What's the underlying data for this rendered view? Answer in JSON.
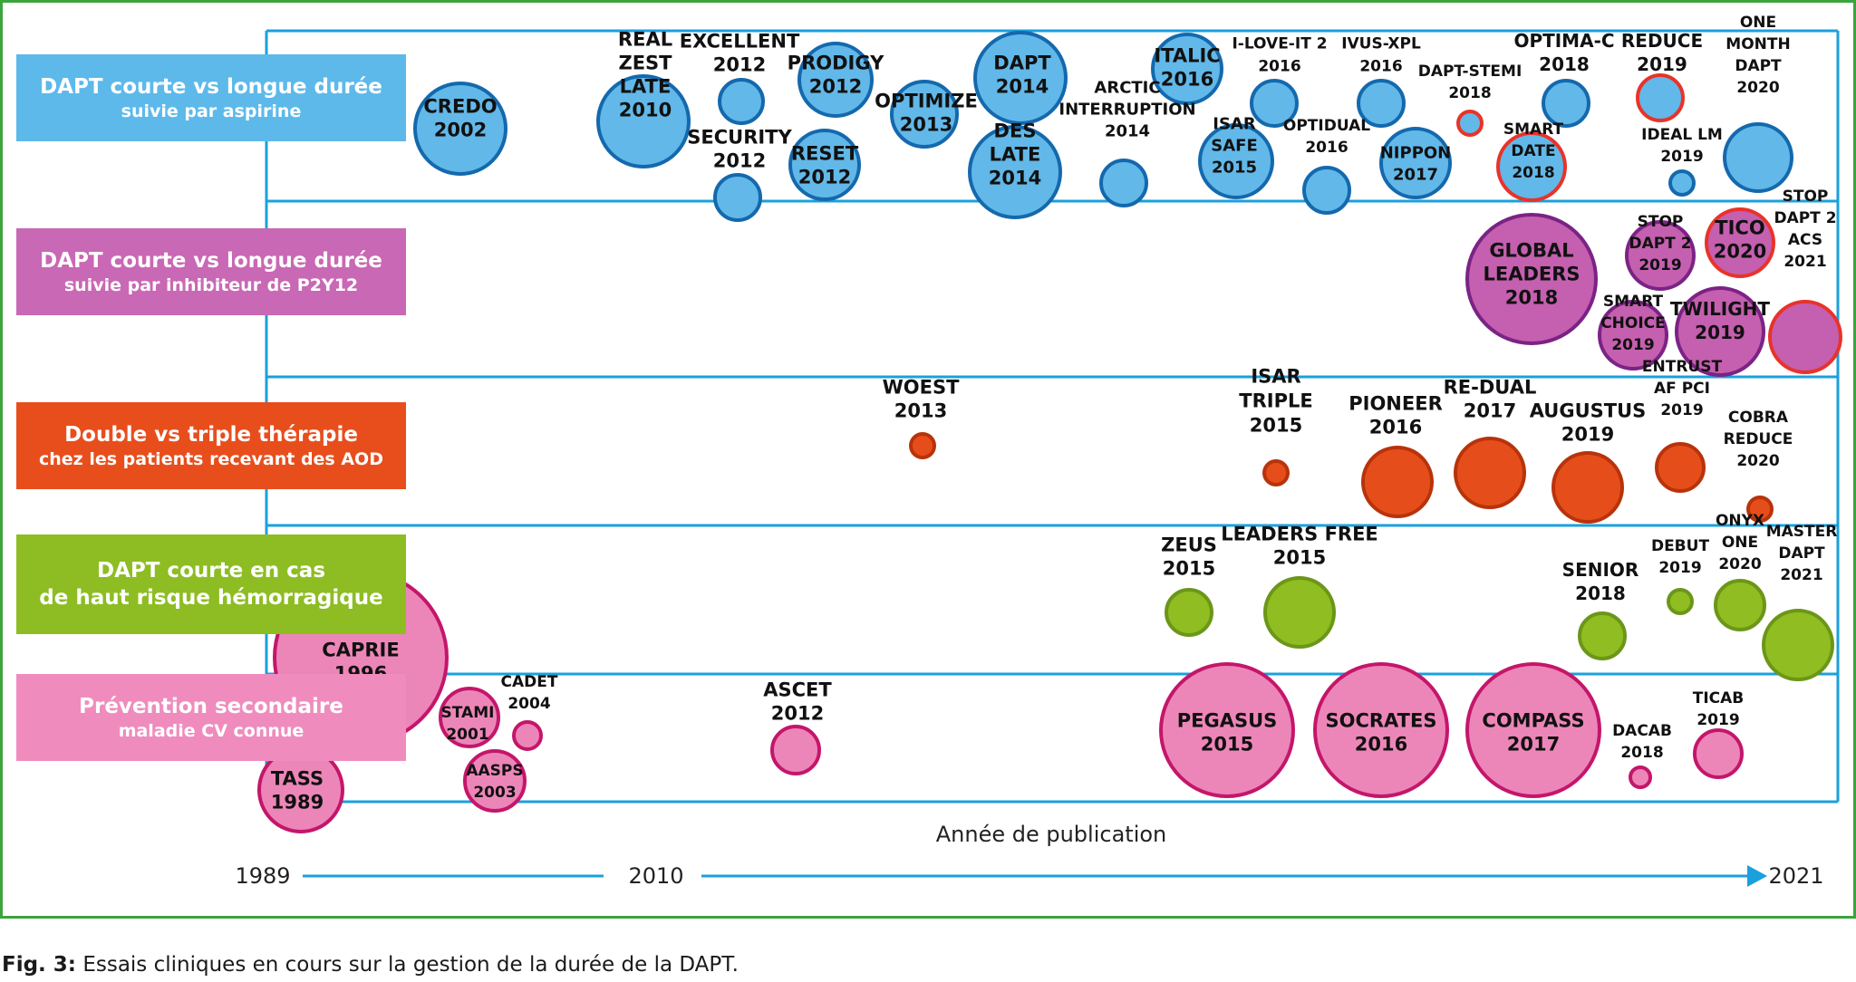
{
  "figure": {
    "caption_prefix": "Fig. 3:",
    "caption_text": " Essais cliniques en cours sur la gestion de la durée de la DAPT.",
    "x_axis_title": "Année de publication",
    "axis_start": "1989",
    "axis_mid": "2010",
    "axis_end": "2021"
  },
  "colors": {
    "frame": "#3aa33c",
    "axis": "#1aa0dd",
    "blue_fill": "#62b8e8",
    "blue_stroke": "#1469ad",
    "purple_fill": "#c55faf",
    "purple_stroke": "#7b2385",
    "orange_fill": "#e54e1b",
    "orange_stroke": "#b8330b",
    "green_fill": "#8fbd22",
    "green_stroke": "#6c9618",
    "pink_fill": "#ed86b8",
    "pink_stroke": "#c4166b",
    "red_stroke": "#e8332a"
  },
  "categories": [
    {
      "id": "blue",
      "line1": "DAPT courte vs longue durée",
      "line2": "suivie par aspirine",
      "color": "#5db9ea"
    },
    {
      "id": "purple",
      "line1": "DAPT courte vs longue durée",
      "line2": "suivie par inhibiteur de P2Y12",
      "color": "#c968b4"
    },
    {
      "id": "orange",
      "line1": "Double vs triple thérapie",
      "line2": "chez les patients recevant des AOD",
      "color": "#e84e1c"
    },
    {
      "id": "green",
      "line1": "DAPT courte en cas",
      "line2": "de haut risque hémorragique",
      "color": "#8dbd22"
    },
    {
      "id": "pink",
      "line1": "Prévention secondaire",
      "line2": "maladie CV connue",
      "color": "#ef8cbd"
    }
  ],
  "trials": [
    {
      "label": [
        "CREDO",
        "2002"
      ],
      "category": "blue"
    },
    {
      "label": [
        "REAL",
        "ZEST",
        "LATE",
        "2010"
      ],
      "category": "blue"
    },
    {
      "label": [
        "EXCELLENT",
        "2012"
      ],
      "category": "blue"
    },
    {
      "label": [
        "PRODIGY",
        "2012"
      ],
      "category": "blue"
    },
    {
      "label": [
        "SECURITY",
        "2012"
      ],
      "category": "blue"
    },
    {
      "label": [
        "RESET",
        "2012"
      ],
      "category": "blue"
    },
    {
      "label": [
        "OPTIMIZE",
        "2013"
      ],
      "category": "blue"
    },
    {
      "label": [
        "DAPT",
        "2014"
      ],
      "category": "blue"
    },
    {
      "label": [
        "DES",
        "LATE",
        "2014"
      ],
      "category": "blue"
    },
    {
      "label": [
        "ARCTIC",
        "INTERRUPTION",
        "2014"
      ],
      "category": "blue"
    },
    {
      "label": [
        "ITALIC",
        "2016"
      ],
      "category": "blue"
    },
    {
      "label": [
        "ISAR",
        "SAFE",
        "2015"
      ],
      "category": "blue"
    },
    {
      "label": [
        "I-LOVE-IT 2",
        "2016"
      ],
      "category": "blue"
    },
    {
      "label": [
        "OPTIDUAL",
        "2016"
      ],
      "category": "blue"
    },
    {
      "label": [
        "IVUS-XPL",
        "2016"
      ],
      "category": "blue"
    },
    {
      "label": [
        "NIPPON",
        "2017"
      ],
      "category": "blue"
    },
    {
      "label": [
        "DAPT-STEMI",
        "2018"
      ],
      "category": "blue"
    },
    {
      "label": [
        "SMART",
        "DATE",
        "2018"
      ],
      "category": "blue"
    },
    {
      "label": [
        "OPTIMA-C",
        "2018"
      ],
      "category": "blue"
    },
    {
      "label": [
        "REDUCE",
        "2019"
      ],
      "category": "blue"
    },
    {
      "label": [
        "IDEAL LM",
        "2019"
      ],
      "category": "blue"
    },
    {
      "label": [
        "ONE",
        "MONTH",
        "DAPT",
        "2020"
      ],
      "category": "blue"
    },
    {
      "label": [
        "GLOBAL",
        "LEADERS",
        "2018"
      ],
      "category": "purple"
    },
    {
      "label": [
        "STOP",
        "DAPT 2",
        "2019"
      ],
      "category": "purple"
    },
    {
      "label": [
        "TICO",
        "2020"
      ],
      "category": "purple"
    },
    {
      "label": [
        "STOP",
        "DAPT 2",
        "ACS",
        "2021"
      ],
      "category": "purple"
    },
    {
      "label": [
        "SMART",
        "CHOICE",
        "2019"
      ],
      "category": "purple"
    },
    {
      "label": [
        "TWILIGHT",
        "2019"
      ],
      "category": "purple"
    },
    {
      "label": [
        "WOEST",
        "2013"
      ],
      "category": "orange"
    },
    {
      "label": [
        "ISAR",
        "TRIPLE",
        "2015"
      ],
      "category": "orange"
    },
    {
      "label": [
        "PIONEER",
        "2016"
      ],
      "category": "orange"
    },
    {
      "label": [
        "RE-DUAL",
        "2017"
      ],
      "category": "orange"
    },
    {
      "label": [
        "AUGUSTUS",
        "2019"
      ],
      "category": "orange"
    },
    {
      "label": [
        "ENTRUST",
        "AF PCI",
        "2019"
      ],
      "category": "orange"
    },
    {
      "label": [
        "COBRA",
        "REDUCE",
        "2020"
      ],
      "category": "orange"
    },
    {
      "label": [
        "ZEUS",
        "2015"
      ],
      "category": "green"
    },
    {
      "label": [
        "LEADERS FREE",
        "2015"
      ],
      "category": "green"
    },
    {
      "label": [
        "SENIOR",
        "2018"
      ],
      "category": "green"
    },
    {
      "label": [
        "DEBUT",
        "2019"
      ],
      "category": "green"
    },
    {
      "label": [
        "ONYX",
        "ONE",
        "2020"
      ],
      "category": "green"
    },
    {
      "label": [
        "MASTER",
        "DAPT",
        "2021"
      ],
      "category": "green"
    },
    {
      "label": [
        "CAPRIE",
        "1996"
      ],
      "category": "pink"
    },
    {
      "label": [
        "STAMI",
        "2001"
      ],
      "category": "pink"
    },
    {
      "label": [
        "CADET",
        "2004"
      ],
      "category": "pink"
    },
    {
      "label": [
        "AASPS",
        "2003"
      ],
      "category": "pink"
    },
    {
      "label": [
        "TASS",
        "1989"
      ],
      "category": "pink"
    },
    {
      "label": [
        "ASCET",
        "2012"
      ],
      "category": "pink"
    },
    {
      "label": [
        "PEGASUS",
        "2015"
      ],
      "category": "pink"
    },
    {
      "label": [
        "SOCRATES",
        "2016"
      ],
      "category": "pink"
    },
    {
      "label": [
        "COMPASS",
        "2017"
      ],
      "category": "pink"
    },
    {
      "label": [
        "DACAB",
        "2018"
      ],
      "category": "pink"
    },
    {
      "label": [
        "TICAB",
        "2019"
      ],
      "category": "pink"
    }
  ]
}
